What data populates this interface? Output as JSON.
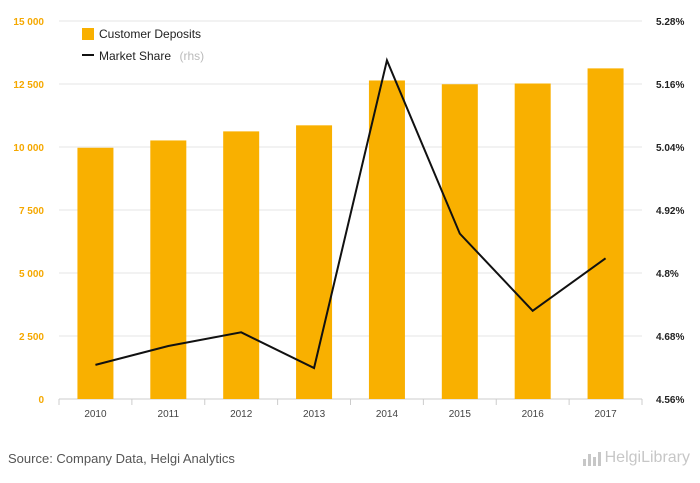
{
  "source_text": "Source: Company Data, Helgi Analytics",
  "logo_text": "HelgiLibrary",
  "colors": {
    "bar": "#f9b000",
    "line": "#111111",
    "left_ticks": "#f5a800",
    "right_ticks": "#222222",
    "grid": "#e6e6e6"
  },
  "chart_data": {
    "type": "bar+line",
    "categories": [
      "2010",
      "2011",
      "2012",
      "2013",
      "2014",
      "2015",
      "2016",
      "2017"
    ],
    "series": [
      {
        "name": "Customer Deposits",
        "kind": "bar",
        "axis": "left",
        "values": [
          9970,
          10260,
          10620,
          10860,
          12640,
          12490,
          12520,
          13120
        ]
      },
      {
        "name": "Market Share",
        "name_suffix": "(rhs)",
        "kind": "line",
        "axis": "right",
        "values": [
          4.625,
          4.661,
          4.687,
          4.619,
          5.205,
          4.875,
          4.728,
          4.828
        ]
      }
    ],
    "left_axis": {
      "min": 0,
      "max": 15000,
      "ticks": [
        0,
        2500,
        5000,
        7500,
        10000,
        12500,
        15000
      ],
      "tick_labels": [
        "0",
        "2 500",
        "5 000",
        "7 500",
        "10 000",
        "12 500",
        "15 000"
      ]
    },
    "right_axis": {
      "min": 4.56,
      "max": 5.28,
      "ticks": [
        4.56,
        4.68,
        4.8,
        4.92,
        5.04,
        5.16,
        5.28
      ],
      "tick_labels": [
        "4.56%",
        "4.68%",
        "4.8%",
        "4.92%",
        "5.04%",
        "5.16%",
        "5.28%"
      ]
    },
    "legend": "top-left",
    "grid": true
  }
}
